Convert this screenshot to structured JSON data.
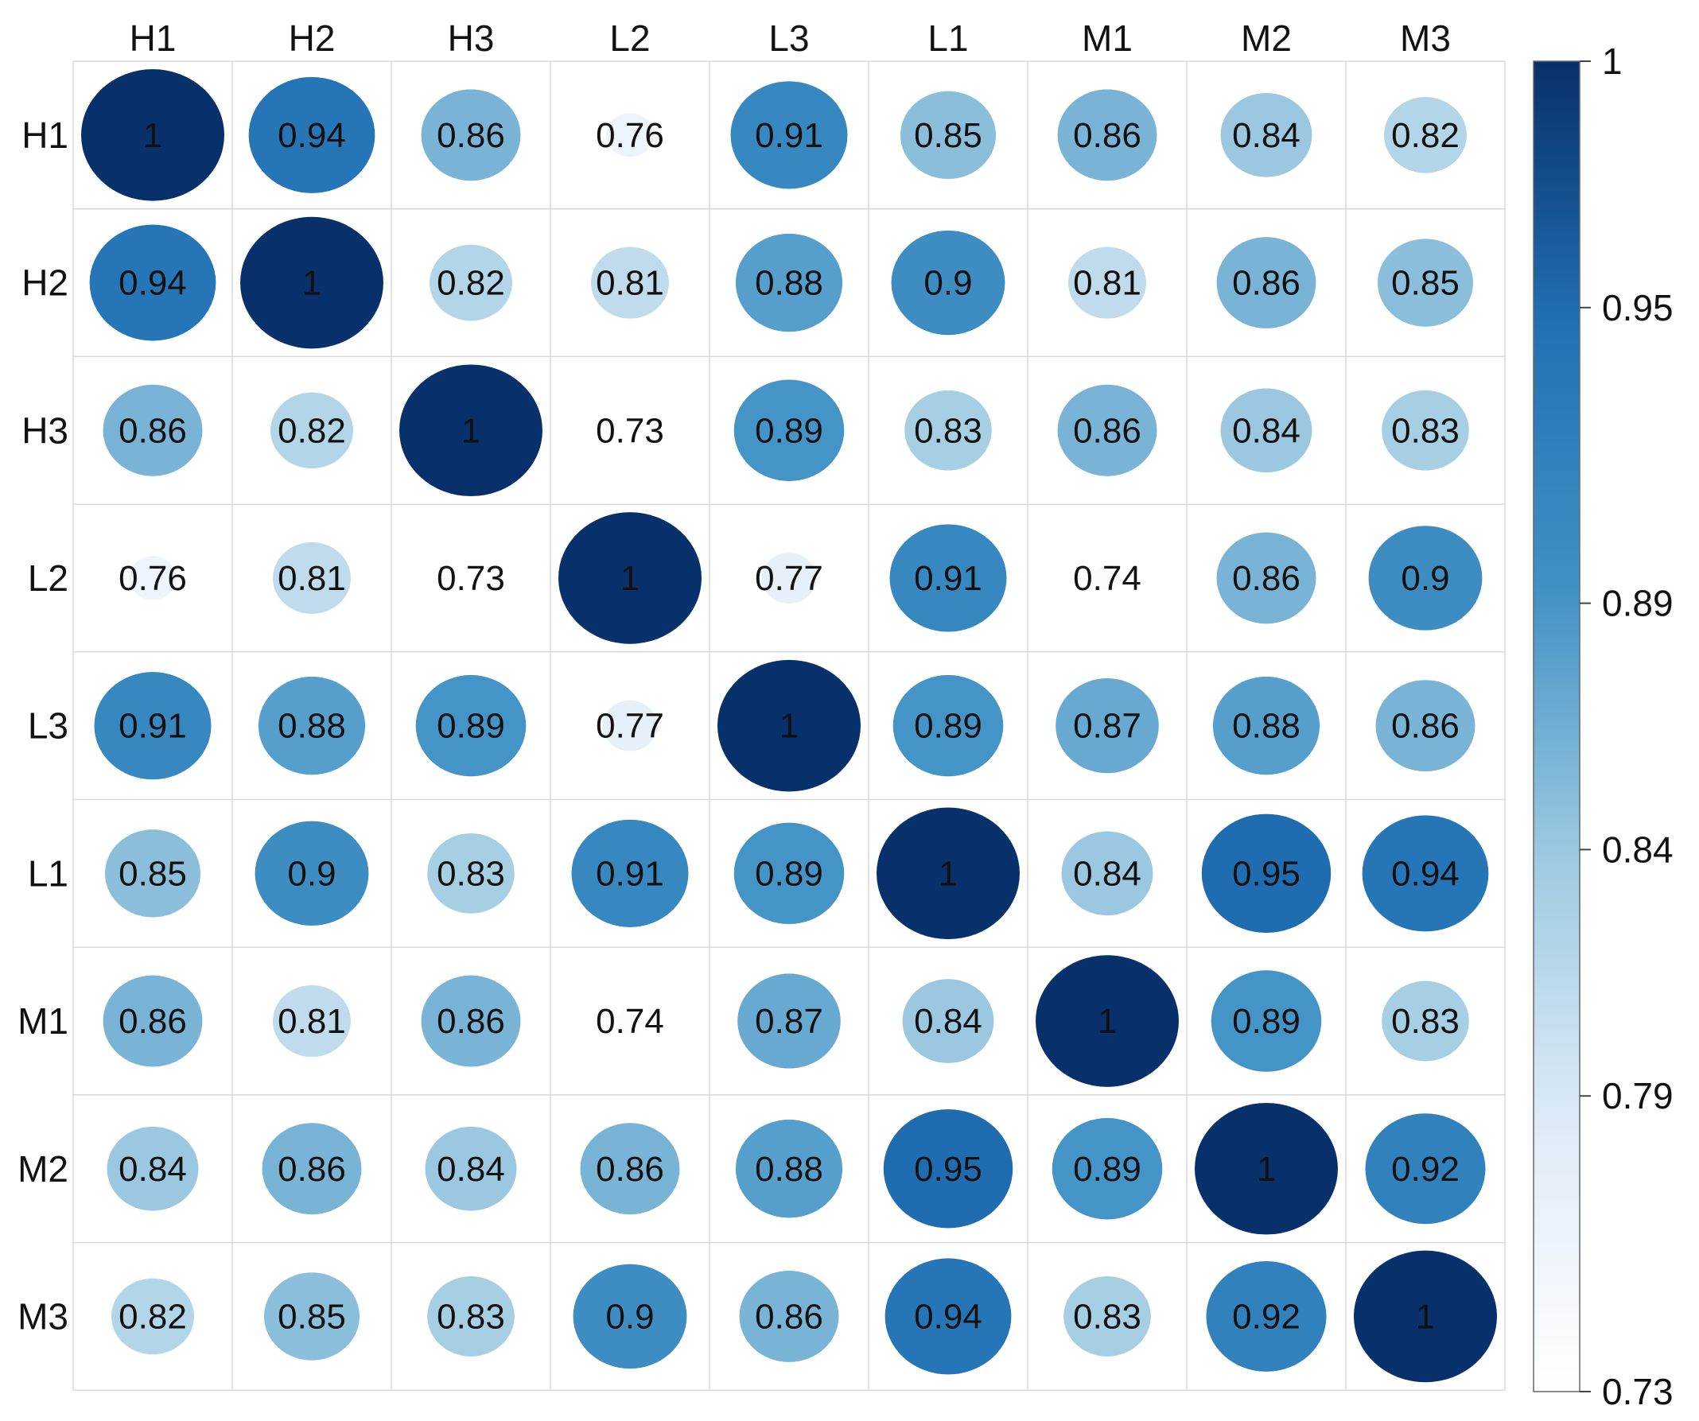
{
  "chart_data": {
    "type": "heatmap",
    "style": "circle-correlation-matrix",
    "title": "",
    "labels": [
      "H1",
      "H2",
      "H3",
      "L2",
      "L3",
      "L1",
      "M1",
      "M2",
      "M3"
    ],
    "matrix": [
      [
        1,
        0.94,
        0.86,
        0.76,
        0.91,
        0.85,
        0.86,
        0.84,
        0.82
      ],
      [
        0.94,
        1,
        0.82,
        0.81,
        0.88,
        0.9,
        0.81,
        0.86,
        0.85
      ],
      [
        0.86,
        0.82,
        1,
        0.73,
        0.89,
        0.83,
        0.86,
        0.84,
        0.83
      ],
      [
        0.76,
        0.81,
        0.73,
        1,
        0.77,
        0.91,
        0.74,
        0.86,
        0.9
      ],
      [
        0.91,
        0.88,
        0.89,
        0.77,
        1,
        0.89,
        0.87,
        0.88,
        0.86
      ],
      [
        0.85,
        0.9,
        0.83,
        0.91,
        0.89,
        1,
        0.84,
        0.95,
        0.94
      ],
      [
        0.86,
        0.81,
        0.86,
        0.74,
        0.87,
        0.84,
        1,
        0.89,
        0.83
      ],
      [
        0.84,
        0.86,
        0.84,
        0.86,
        0.88,
        0.95,
        0.89,
        1,
        0.92
      ],
      [
        0.82,
        0.85,
        0.83,
        0.9,
        0.86,
        0.94,
        0.83,
        0.92,
        1
      ]
    ],
    "colorbar": {
      "min": 0.73,
      "max": 1,
      "ticks": [
        "1",
        "0.95",
        "0.89",
        "0.84",
        "0.79",
        "0.73"
      ],
      "tick_values": [
        1,
        0.95,
        0.89,
        0.84,
        0.79,
        0.73
      ],
      "colors": [
        "#ffffff",
        "#deebf7",
        "#9ecae1",
        "#4292c6",
        "#2171b5",
        "#08306b"
      ]
    },
    "grid": true
  }
}
